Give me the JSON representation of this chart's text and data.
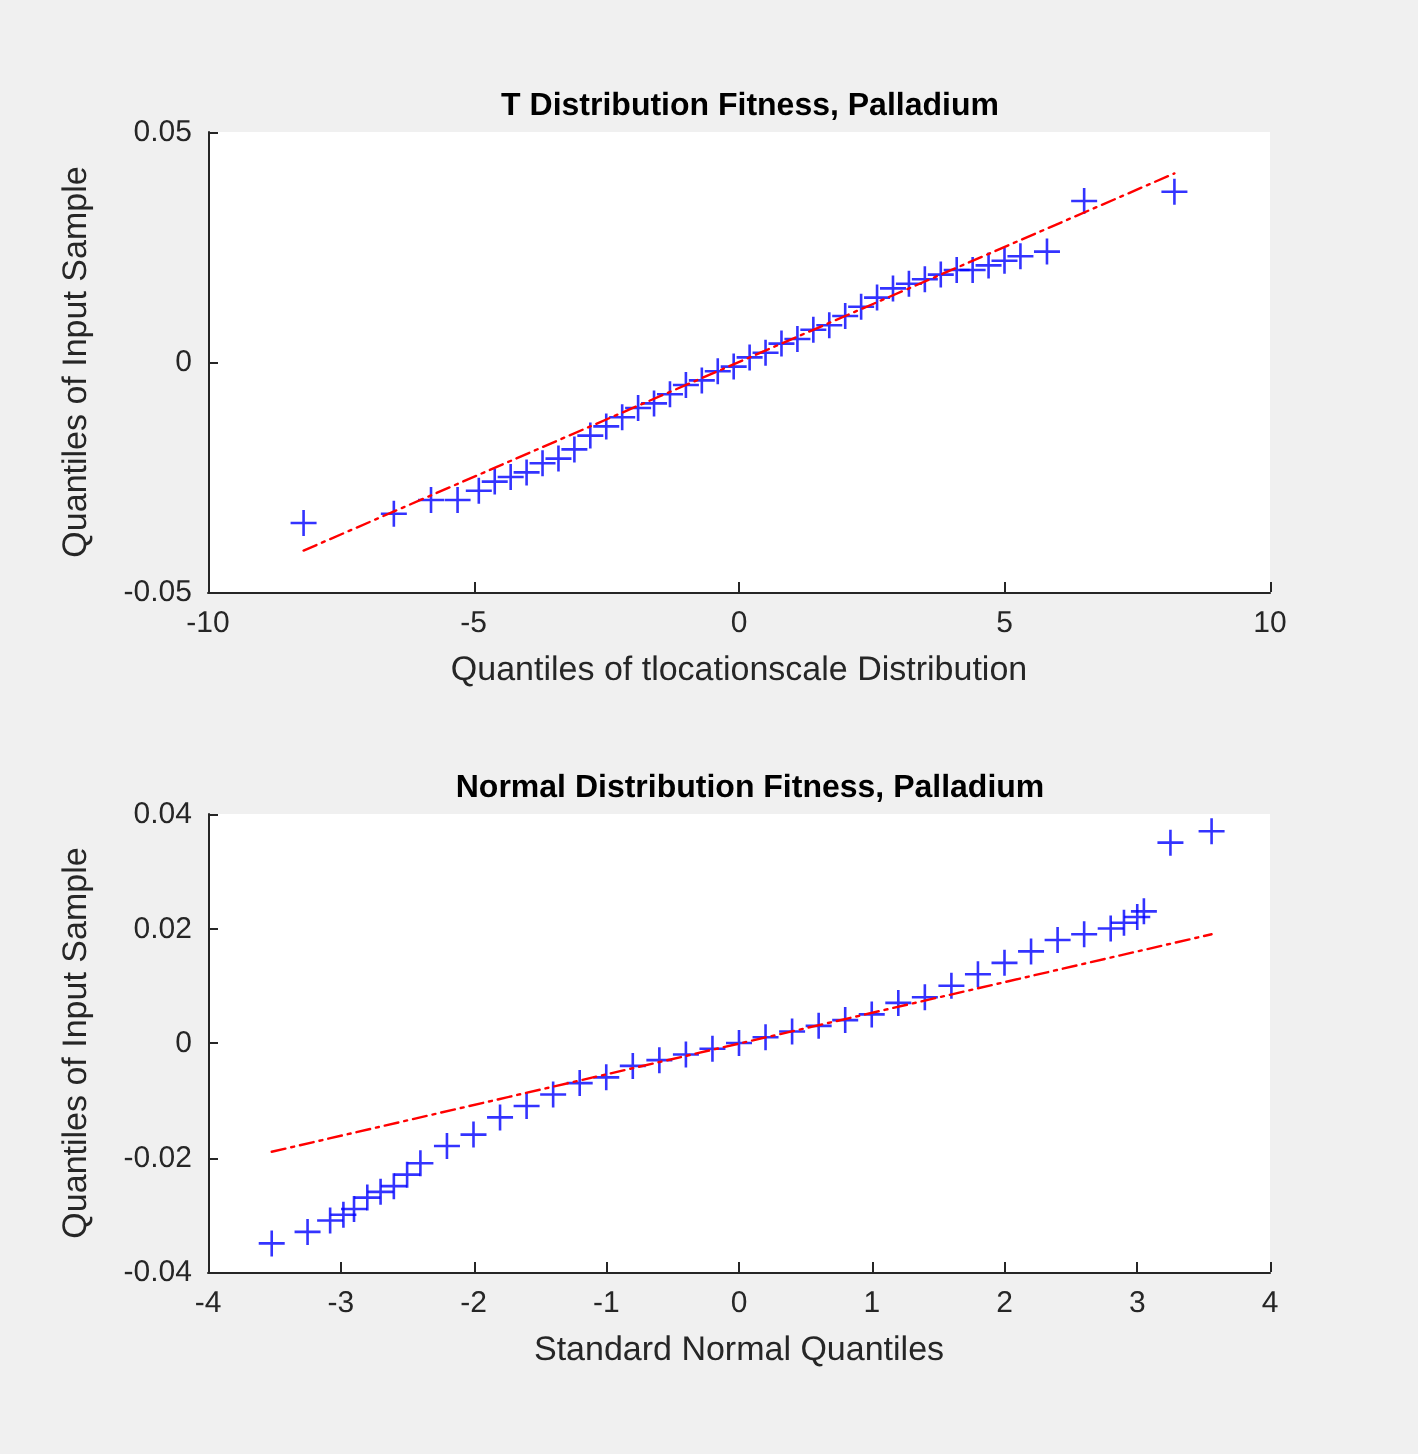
{
  "chart_data": [
    {
      "type": "scatter",
      "title": "T Distribution Fitness, Palladium",
      "xlabel": "Quantiles of tlocationscale Distribution",
      "ylabel": "Quantiles of Input Sample",
      "xlim": [
        -10,
        10
      ],
      "xticks": [
        -10,
        -5,
        0,
        5,
        10
      ],
      "ylim": [
        -0.05,
        0.05
      ],
      "yticks": [
        -0.05,
        0,
        0.05
      ],
      "grid": false,
      "marker": "cross",
      "series": [
        {
          "color": "#0000ff",
          "x": [
            -8.2,
            -6.5,
            -5.8,
            -5.3,
            -4.9,
            -4.6,
            -4.3,
            -4.0,
            -3.7,
            -3.4,
            -3.1,
            -2.8,
            -2.5,
            -2.2,
            -1.9,
            -1.6,
            -1.3,
            -1.0,
            -0.7,
            -0.4,
            -0.1,
            0.2,
            0.5,
            0.8,
            1.1,
            1.4,
            1.7,
            2.0,
            2.3,
            2.6,
            2.9,
            3.2,
            3.5,
            3.8,
            4.1,
            4.4,
            4.7,
            5.0,
            5.3,
            5.8,
            6.5,
            8.2
          ],
          "values": [
            -0.035,
            -0.033,
            -0.03,
            -0.03,
            -0.028,
            -0.026,
            -0.025,
            -0.024,
            -0.022,
            -0.021,
            -0.019,
            -0.016,
            -0.014,
            -0.012,
            -0.01,
            -0.009,
            -0.007,
            -0.005,
            -0.004,
            -0.002,
            -0.001,
            0.001,
            0.002,
            0.004,
            0.005,
            0.007,
            0.008,
            0.01,
            0.012,
            0.014,
            0.016,
            0.017,
            0.018,
            0.019,
            0.02,
            0.02,
            0.021,
            0.022,
            0.023,
            0.024,
            0.035,
            0.037
          ]
        },
        {
          "type": "line",
          "color": "#ff0000",
          "line_style": "dashed",
          "marker": "none",
          "x": [
            -8.2,
            8.2
          ],
          "values": [
            -0.041,
            0.041
          ]
        }
      ]
    },
    {
      "type": "scatter",
      "title": "Normal Distribution Fitness, Palladium",
      "xlabel": "Standard Normal Quantiles",
      "ylabel": "Quantiles of Input Sample",
      "xlim": [
        -4,
        4
      ],
      "xticks": [
        -4,
        -3,
        -2,
        -1,
        0,
        1,
        2,
        3,
        4
      ],
      "ylim": [
        -0.04,
        0.04
      ],
      "yticks": [
        -0.04,
        -0.02,
        0,
        0.02,
        0.04
      ],
      "grid": false,
      "marker": "cross",
      "series": [
        {
          "color": "#0000ff",
          "x": [
            -3.52,
            -3.25,
            -3.08,
            -2.98,
            -2.9,
            -2.8,
            -2.7,
            -2.6,
            -2.5,
            -2.4,
            -2.2,
            -2.0,
            -1.8,
            -1.6,
            -1.4,
            -1.2,
            -1.0,
            -0.8,
            -0.6,
            -0.4,
            -0.2,
            0,
            0.2,
            0.4,
            0.6,
            0.8,
            1.0,
            1.2,
            1.4,
            1.6,
            1.8,
            2.0,
            2.2,
            2.4,
            2.6,
            2.8,
            2.9,
            3.0,
            3.05,
            3.25,
            3.56
          ],
          "values": [
            -0.035,
            -0.033,
            -0.031,
            -0.03,
            -0.029,
            -0.027,
            -0.026,
            -0.025,
            -0.023,
            -0.021,
            -0.018,
            -0.016,
            -0.013,
            -0.011,
            -0.009,
            -0.007,
            -0.006,
            -0.004,
            -0.003,
            -0.002,
            -0.001,
            0,
            0.001,
            0.002,
            0.003,
            0.004,
            0.005,
            0.007,
            0.008,
            0.01,
            0.012,
            0.014,
            0.016,
            0.018,
            0.019,
            0.02,
            0.021,
            0.022,
            0.023,
            0.035,
            0.037
          ]
        },
        {
          "type": "line",
          "color": "#ff0000",
          "line_style": "dashed",
          "marker": "none",
          "x": [
            -3.52,
            3.56
          ],
          "values": [
            -0.019,
            0.019
          ]
        }
      ]
    }
  ]
}
